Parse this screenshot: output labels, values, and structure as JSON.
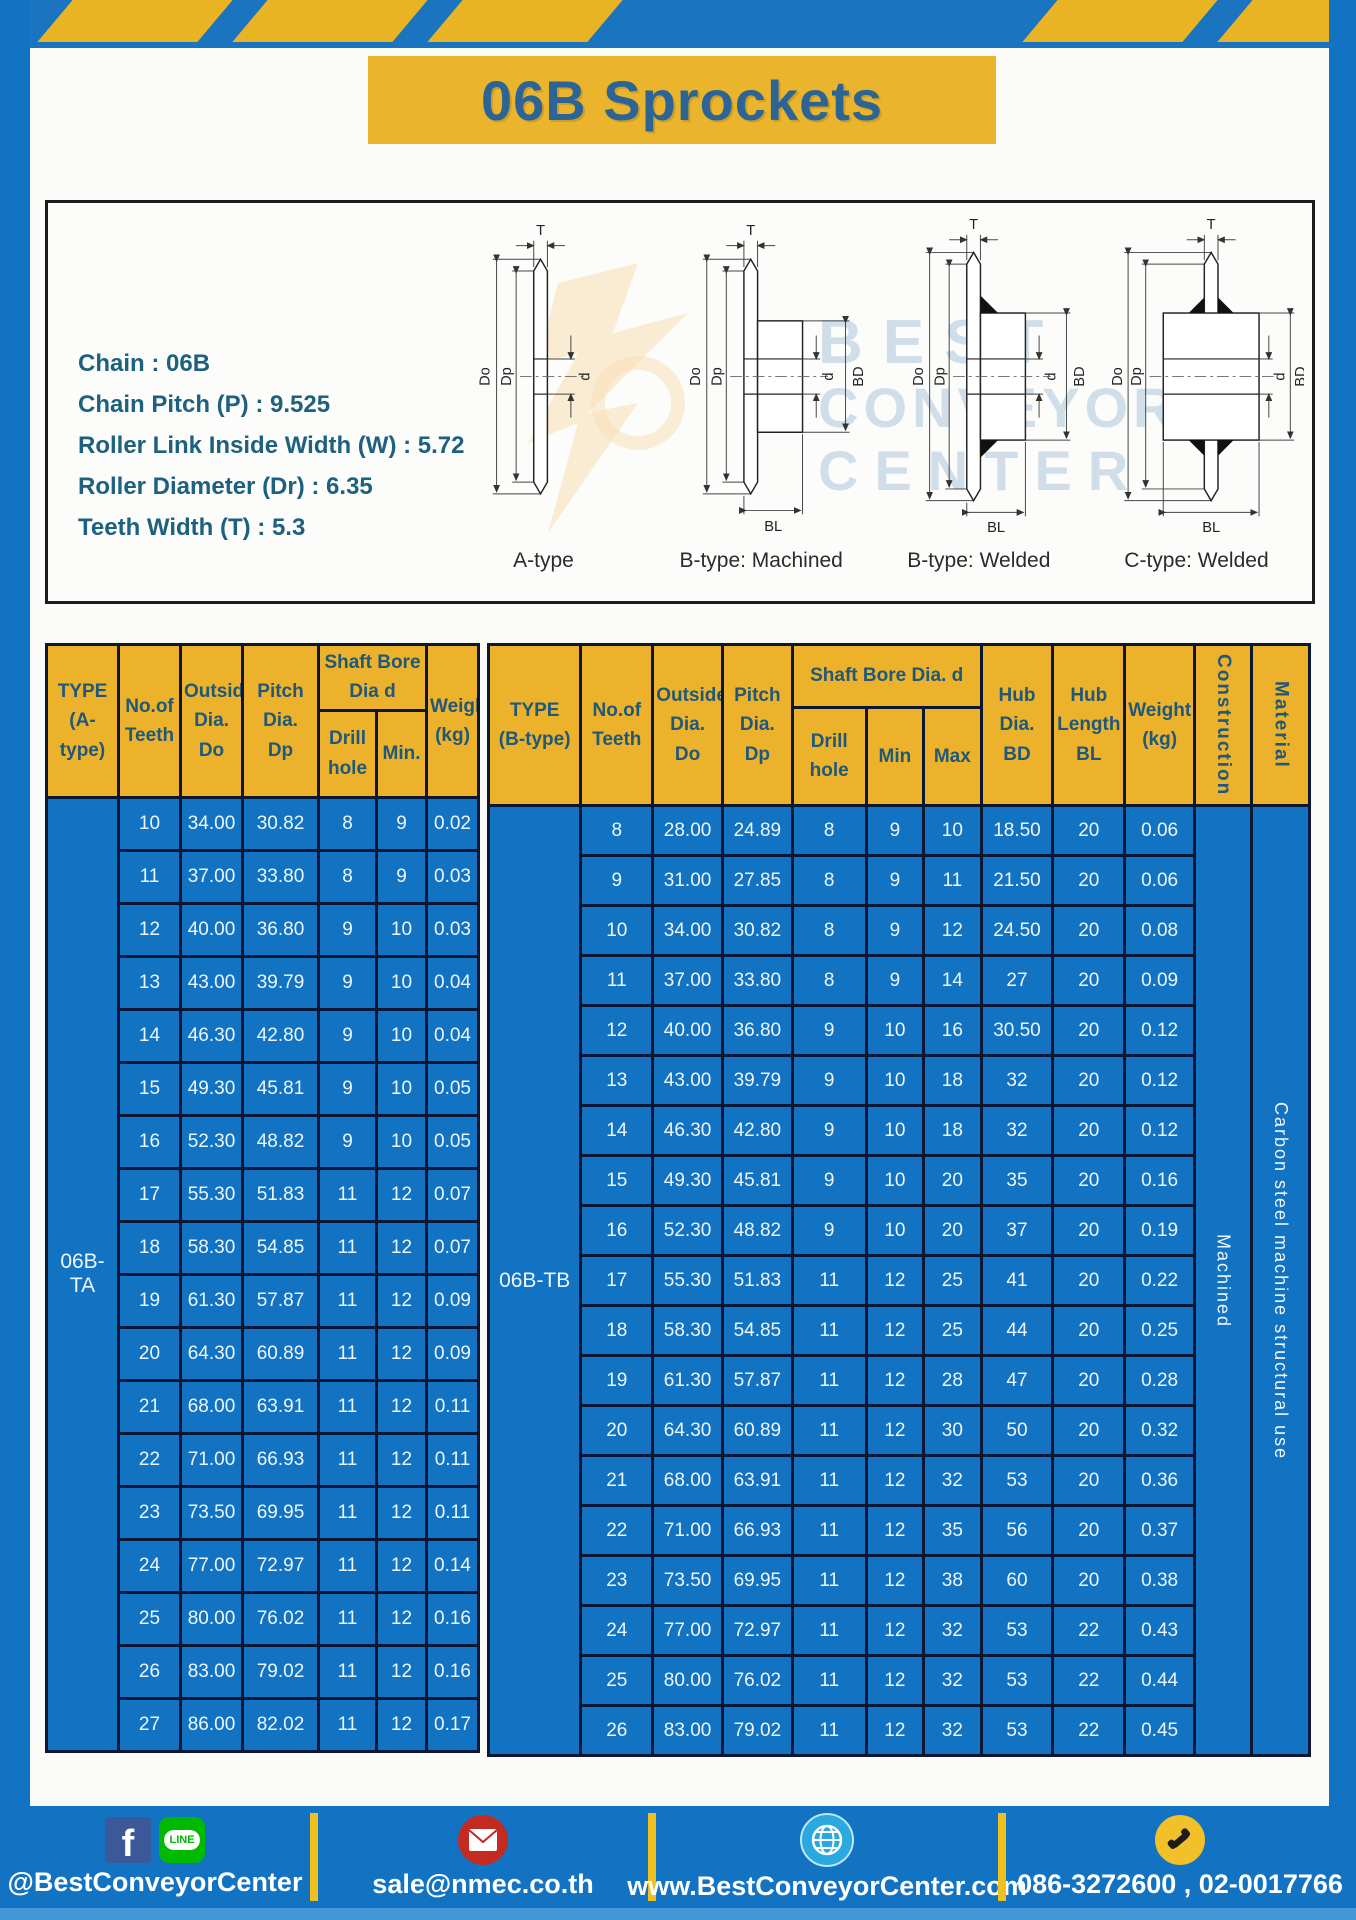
{
  "page": {
    "title": "06B Sprockets"
  },
  "colors": {
    "frame_blue": "#1273c2",
    "accent_yellow": "#eab42c",
    "table_border_navy": "#0b1733",
    "header_text": "#20587a",
    "title_text": "#2d6496",
    "spec_text": "#1d617f"
  },
  "specs": [
    "Chain : 06B",
    "Chain Pitch (P) : 9.525",
    "Roller Link Inside Width (W) : 5.72",
    "Roller Diameter (Dr) : 6.35",
    "Teeth Width (T) : 5.3"
  ],
  "watermark": {
    "lines": [
      "BEST",
      "CONVEYOR",
      "CENTER"
    ]
  },
  "diagram": {
    "captions": [
      "A-type",
      "B-type: Machined",
      "B-type: Welded",
      "C-type: Welded"
    ],
    "dims": {
      "t": "T",
      "do": "Do",
      "dp": "Dp",
      "d": "d",
      "bd": "BD",
      "bl": "BL"
    }
  },
  "tables": {
    "a": {
      "header": {
        "type": "TYPE\n(A-type)",
        "teeth": "No.of\nTeeth",
        "outside": "Outside\nDia.\nDo",
        "pitch": "Pitch Dia.\nDp",
        "shaft_group": "Shaft Bore Dia d",
        "drill": "Drill hole",
        "min": "Min.",
        "weight": "Weight\n(kg)"
      },
      "group_label": "06B-TA",
      "rows": [
        [
          "10",
          "34.00",
          "30.82",
          "8",
          "9",
          "0.02"
        ],
        [
          "11",
          "37.00",
          "33.80",
          "8",
          "9",
          "0.03"
        ],
        [
          "12",
          "40.00",
          "36.80",
          "9",
          "10",
          "0.03"
        ],
        [
          "13",
          "43.00",
          "39.79",
          "9",
          "10",
          "0.04"
        ],
        [
          "14",
          "46.30",
          "42.80",
          "9",
          "10",
          "0.04"
        ],
        [
          "15",
          "49.30",
          "45.81",
          "9",
          "10",
          "0.05"
        ],
        [
          "16",
          "52.30",
          "48.82",
          "9",
          "10",
          "0.05"
        ],
        [
          "17",
          "55.30",
          "51.83",
          "11",
          "12",
          "0.07"
        ],
        [
          "18",
          "58.30",
          "54.85",
          "11",
          "12",
          "0.07"
        ],
        [
          "19",
          "61.30",
          "57.87",
          "11",
          "12",
          "0.09"
        ],
        [
          "20",
          "64.30",
          "60.89",
          "11",
          "12",
          "0.09"
        ],
        [
          "21",
          "68.00",
          "63.91",
          "11",
          "12",
          "0.11"
        ],
        [
          "22",
          "71.00",
          "66.93",
          "11",
          "12",
          "0.11"
        ],
        [
          "23",
          "73.50",
          "69.95",
          "11",
          "12",
          "0.11"
        ],
        [
          "24",
          "77.00",
          "72.97",
          "11",
          "12",
          "0.14"
        ],
        [
          "25",
          "80.00",
          "76.02",
          "11",
          "12",
          "0.16"
        ],
        [
          "26",
          "83.00",
          "79.02",
          "11",
          "12",
          "0.16"
        ],
        [
          "27",
          "86.00",
          "82.02",
          "11",
          "12",
          "0.17"
        ]
      ]
    },
    "b": {
      "header": {
        "type": "TYPE\n(B-type)",
        "teeth": "No.of\nTeeth",
        "outside": "Outside\nDia.\nDo",
        "pitch": "Pitch\nDia.\nDp",
        "shaft_group": "Shaft Bore Dia. d",
        "drill": "Drill hole",
        "min": "Min",
        "max": "Max",
        "hub_dia": "Hub\nDia.\nBD",
        "hub_len": "Hub\nLength\nBL",
        "weight": "Weight\n(kg)",
        "construction": "Construction",
        "material": "Material"
      },
      "group_label": "06B-TB",
      "construction_value": "Machined",
      "material_value": "Carbon steel machine structural use",
      "rows": [
        [
          "8",
          "28.00",
          "24.89",
          "8",
          "9",
          "10",
          "18.50",
          "20",
          "0.06"
        ],
        [
          "9",
          "31.00",
          "27.85",
          "8",
          "9",
          "11",
          "21.50",
          "20",
          "0.06"
        ],
        [
          "10",
          "34.00",
          "30.82",
          "8",
          "9",
          "12",
          "24.50",
          "20",
          "0.08"
        ],
        [
          "11",
          "37.00",
          "33.80",
          "8",
          "9",
          "14",
          "27",
          "20",
          "0.09"
        ],
        [
          "12",
          "40.00",
          "36.80",
          "9",
          "10",
          "16",
          "30.50",
          "20",
          "0.12"
        ],
        [
          "13",
          "43.00",
          "39.79",
          "9",
          "10",
          "18",
          "32",
          "20",
          "0.12"
        ],
        [
          "14",
          "46.30",
          "42.80",
          "9",
          "10",
          "18",
          "32",
          "20",
          "0.12"
        ],
        [
          "15",
          "49.30",
          "45.81",
          "9",
          "10",
          "20",
          "35",
          "20",
          "0.16"
        ],
        [
          "16",
          "52.30",
          "48.82",
          "9",
          "10",
          "20",
          "37",
          "20",
          "0.19"
        ],
        [
          "17",
          "55.30",
          "51.83",
          "11",
          "12",
          "25",
          "41",
          "20",
          "0.22"
        ],
        [
          "18",
          "58.30",
          "54.85",
          "11",
          "12",
          "25",
          "44",
          "20",
          "0.25"
        ],
        [
          "19",
          "61.30",
          "57.87",
          "11",
          "12",
          "28",
          "47",
          "20",
          "0.28"
        ],
        [
          "20",
          "64.30",
          "60.89",
          "11",
          "12",
          "30",
          "50",
          "20",
          "0.32"
        ],
        [
          "21",
          "68.00",
          "63.91",
          "11",
          "12",
          "32",
          "53",
          "20",
          "0.36"
        ],
        [
          "22",
          "71.00",
          "66.93",
          "11",
          "12",
          "35",
          "56",
          "20",
          "0.37"
        ],
        [
          "23",
          "73.50",
          "69.95",
          "11",
          "12",
          "38",
          "60",
          "20",
          "0.38"
        ],
        [
          "24",
          "77.00",
          "72.97",
          "11",
          "12",
          "32",
          "53",
          "22",
          "0.43"
        ],
        [
          "25",
          "80.00",
          "76.02",
          "11",
          "12",
          "32",
          "53",
          "22",
          "0.44"
        ],
        [
          "26",
          "83.00",
          "79.02",
          "11",
          "12",
          "32",
          "53",
          "22",
          "0.45"
        ]
      ]
    }
  },
  "footer": {
    "social_label": "@BestConveyorCenter",
    "line_text": "LINE",
    "email": "sale@nmec.co.th",
    "website": "www.BestConveyorCenter.com",
    "phone": "086-3272600 , 02-0017766"
  }
}
